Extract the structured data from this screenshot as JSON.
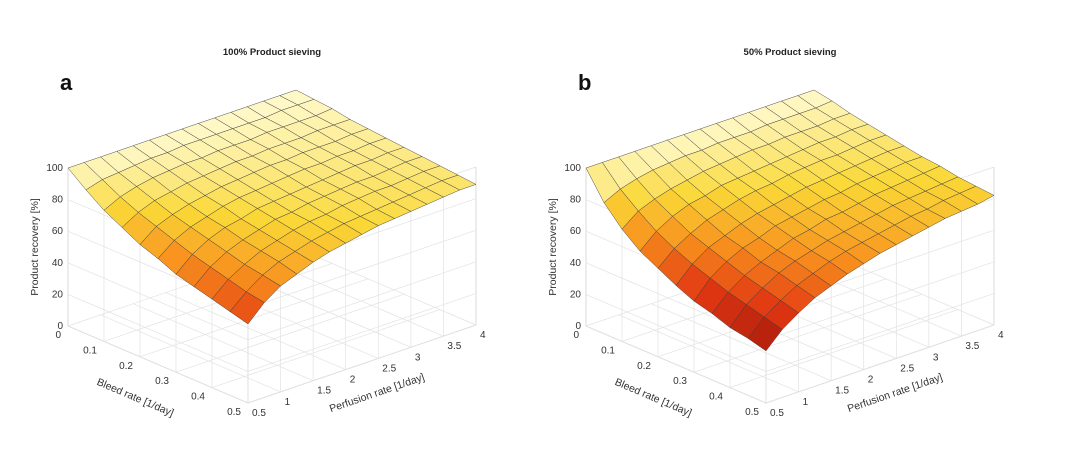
{
  "chart_data": [
    {
      "type": "surface",
      "panel": "a",
      "title": "100% Product sieving",
      "xlabel": "Perfusion rate [1/day]",
      "ylabel": "Bleed rate [1/day]",
      "zlabel": "Product recovery [%]",
      "xlim": [
        0.5,
        4
      ],
      "ylim": [
        0,
        0.5
      ],
      "zlim": [
        0,
        100
      ],
      "x_ticks": [
        "0.5",
        "1",
        "1.5",
        "2",
        "2.5",
        "3",
        "3.5",
        "4"
      ],
      "y_ticks": [
        "0",
        "0.1",
        "0.2",
        "0.3",
        "0.4",
        "0.5"
      ],
      "z_ticks": [
        "0",
        "20",
        "40",
        "60",
        "80",
        "100"
      ],
      "x_grid": [
        0.5,
        0.75,
        1.0,
        1.25,
        1.5,
        1.75,
        2.0,
        2.25,
        2.5,
        2.75,
        3.0,
        3.25,
        3.5,
        3.75,
        4.0
      ],
      "y_grid": [
        0,
        0.05,
        0.1,
        0.15,
        0.2,
        0.25,
        0.3,
        0.35,
        0.4,
        0.45,
        0.5
      ],
      "sieving": 1.0,
      "z_values": [
        [
          100,
          100,
          100,
          100,
          100,
          100,
          100,
          100,
          100,
          100,
          100,
          100,
          100,
          100,
          100
        ],
        [
          91,
          94,
          95,
          96,
          97,
          97,
          98,
          98,
          98,
          98,
          98,
          98,
          99,
          99,
          99
        ],
        [
          83,
          88,
          91,
          93,
          94,
          95,
          95,
          96,
          96,
          96,
          97,
          97,
          97,
          97,
          98
        ],
        [
          77,
          83,
          87,
          89,
          91,
          92,
          93,
          94,
          94,
          95,
          95,
          95,
          96,
          96,
          96
        ],
        [
          71,
          79,
          83,
          86,
          88,
          90,
          91,
          92,
          93,
          93,
          94,
          94,
          94,
          95,
          95
        ],
        [
          67,
          75,
          80,
          83,
          86,
          88,
          89,
          90,
          91,
          92,
          92,
          93,
          93,
          94,
          94
        ],
        [
          62,
          71,
          77,
          81,
          83,
          86,
          87,
          88,
          89,
          90,
          91,
          92,
          92,
          93,
          93
        ],
        [
          59,
          68,
          74,
          78,
          81,
          84,
          85,
          87,
          88,
          89,
          90,
          90,
          91,
          92,
          92
        ],
        [
          56,
          65,
          71,
          76,
          79,
          82,
          84,
          85,
          87,
          88,
          89,
          89,
          90,
          91,
          91
        ],
        [
          53,
          62,
          69,
          74,
          77,
          80,
          82,
          84,
          85,
          86,
          87,
          88,
          89,
          90,
          90
        ],
        [
          50,
          60,
          67,
          71,
          75,
          78,
          80,
          82,
          84,
          85,
          86,
          87,
          88,
          89,
          89
        ]
      ]
    },
    {
      "type": "surface",
      "panel": "b",
      "title": "50% Product sieving",
      "xlabel": "Perfusion rate [1/day]",
      "ylabel": "Bleed rate [1/day]",
      "zlabel": "Product recovery [%]",
      "xlim": [
        0.5,
        4
      ],
      "ylim": [
        0,
        0.5
      ],
      "zlim": [
        0,
        100
      ],
      "x_ticks": [
        "0.5",
        "1",
        "1.5",
        "2",
        "2.5",
        "3",
        "3.5",
        "4"
      ],
      "y_ticks": [
        "0",
        "0.1",
        "0.2",
        "0.3",
        "0.4",
        "0.5"
      ],
      "z_ticks": [
        "0",
        "20",
        "40",
        "60",
        "80",
        "100"
      ],
      "x_grid": [
        0.5,
        0.75,
        1.0,
        1.25,
        1.5,
        1.75,
        2.0,
        2.25,
        2.5,
        2.75,
        3.0,
        3.25,
        3.5,
        3.75,
        4.0
      ],
      "y_grid": [
        0,
        0.05,
        0.1,
        0.15,
        0.2,
        0.25,
        0.3,
        0.35,
        0.4,
        0.45,
        0.5
      ],
      "sieving": 0.5,
      "z_values": [
        [
          100,
          100,
          100,
          100,
          100,
          100,
          100,
          100,
          100,
          100,
          100,
          100,
          100,
          100,
          100
        ],
        [
          83,
          88,
          91,
          93,
          94,
          95,
          95,
          96,
          96,
          96,
          97,
          97,
          97,
          97,
          98
        ],
        [
          71,
          79,
          83,
          86,
          88,
          90,
          91,
          92,
          93,
          93,
          94,
          94,
          94,
          95,
          95
        ],
        [
          62,
          71,
          77,
          81,
          83,
          86,
          87,
          88,
          89,
          90,
          91,
          92,
          92,
          93,
          93
        ],
        [
          56,
          65,
          71,
          76,
          79,
          82,
          84,
          85,
          87,
          88,
          89,
          89,
          90,
          91,
          91
        ],
        [
          50,
          60,
          67,
          71,
          75,
          78,
          80,
          82,
          84,
          85,
          86,
          87,
          88,
          89,
          89
        ],
        [
          45,
          56,
          63,
          68,
          71,
          75,
          77,
          79,
          81,
          82,
          84,
          85,
          86,
          87,
          87
        ],
        [
          42,
          52,
          59,
          64,
          68,
          72,
          74,
          77,
          78,
          80,
          82,
          83,
          84,
          85,
          86
        ],
        [
          38,
          49,
          56,
          62,
          66,
          69,
          72,
          74,
          76,
          78,
          80,
          81,
          82,
          83,
          84
        ],
        [
          36,
          46,
          53,
          59,
          63,
          67,
          70,
          72,
          74,
          76,
          78,
          79,
          81,
          82,
          83
        ],
        [
          33,
          43,
          50,
          56,
          60,
          64,
          67,
          70,
          72,
          74,
          76,
          78,
          79,
          80,
          82
        ]
      ]
    }
  ]
}
